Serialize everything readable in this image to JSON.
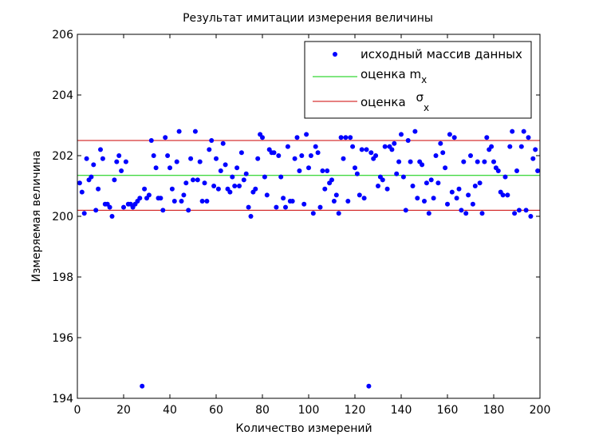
{
  "chart_data": {
    "type": "scatter",
    "title": "Результат имитации измерения величины",
    "xlabel": "Количество измерений",
    "ylabel": "Измеряемая величина",
    "xlim": [
      0,
      200
    ],
    "ylim": [
      194,
      206
    ],
    "xticks": [
      0,
      20,
      40,
      60,
      80,
      100,
      120,
      140,
      160,
      180,
      200
    ],
    "yticks": [
      194,
      196,
      198,
      200,
      202,
      204,
      206
    ],
    "grid": false,
    "legend_position": "top-right",
    "legend": {
      "data_label": "исходный массив данных",
      "mean_label": "оценка m",
      "mean_sub": "x",
      "sigma_label": "оценка ",
      "sigma_symbol": "σ",
      "sigma_sub": "x"
    },
    "colors": {
      "points": "#0000ff",
      "mean_line": "#00cc00",
      "sigma_lines": "#cc0000"
    },
    "mean": 201.35,
    "sigma_bounds": [
      200.2,
      202.5
    ],
    "points": [
      [
        1,
        201.1
      ],
      [
        2,
        200.8
      ],
      [
        3,
        200.1
      ],
      [
        4,
        201.9
      ],
      [
        5,
        201.2
      ],
      [
        6,
        201.3
      ],
      [
        7,
        201.7
      ],
      [
        8,
        200.2
      ],
      [
        9,
        200.9
      ],
      [
        10,
        202.2
      ],
      [
        11,
        201.9
      ],
      [
        12,
        200.4
      ],
      [
        13,
        200.4
      ],
      [
        14,
        200.3
      ],
      [
        15,
        200.0
      ],
      [
        16,
        201.2
      ],
      [
        17,
        201.8
      ],
      [
        18,
        202.0
      ],
      [
        19,
        201.5
      ],
      [
        20,
        200.3
      ],
      [
        21,
        201.8
      ],
      [
        22,
        200.4
      ],
      [
        23,
        200.4
      ],
      [
        24,
        200.3
      ],
      [
        25,
        200.4
      ],
      [
        26,
        200.5
      ],
      [
        27,
        200.6
      ],
      [
        28,
        194.4
      ],
      [
        29,
        200.9
      ],
      [
        30,
        200.6
      ],
      [
        31,
        200.7
      ],
      [
        32,
        202.5
      ],
      [
        33,
        202.0
      ],
      [
        34,
        201.6
      ],
      [
        35,
        200.6
      ],
      [
        36,
        200.6
      ],
      [
        37,
        200.2
      ],
      [
        38,
        202.6
      ],
      [
        39,
        202.0
      ],
      [
        40,
        201.6
      ],
      [
        41,
        200.9
      ],
      [
        42,
        200.5
      ],
      [
        43,
        201.8
      ],
      [
        44,
        202.8
      ],
      [
        45,
        200.5
      ],
      [
        46,
        200.7
      ],
      [
        47,
        201.1
      ],
      [
        48,
        200.2
      ],
      [
        49,
        201.9
      ],
      [
        50,
        201.2
      ],
      [
        51,
        202.8
      ],
      [
        52,
        201.2
      ],
      [
        53,
        201.8
      ],
      [
        54,
        200.5
      ],
      [
        55,
        201.1
      ],
      [
        56,
        200.5
      ],
      [
        57,
        202.2
      ],
      [
        58,
        202.5
      ],
      [
        59,
        201.0
      ],
      [
        60,
        201.9
      ],
      [
        61,
        200.9
      ],
      [
        62,
        201.5
      ],
      [
        63,
        202.4
      ],
      [
        64,
        201.7
      ],
      [
        65,
        200.9
      ],
      [
        66,
        200.8
      ],
      [
        67,
        201.3
      ],
      [
        68,
        201.0
      ],
      [
        69,
        201.6
      ],
      [
        70,
        201.0
      ],
      [
        71,
        202.1
      ],
      [
        72,
        201.2
      ],
      [
        73,
        201.4
      ],
      [
        74,
        200.3
      ],
      [
        75,
        200.0
      ],
      [
        76,
        200.8
      ],
      [
        77,
        200.9
      ],
      [
        78,
        201.9
      ],
      [
        79,
        202.7
      ],
      [
        80,
        202.6
      ],
      [
        81,
        201.3
      ],
      [
        82,
        200.7
      ],
      [
        83,
        202.2
      ],
      [
        84,
        202.1
      ],
      [
        85,
        202.1
      ],
      [
        86,
        200.3
      ],
      [
        87,
        202.0
      ],
      [
        88,
        201.3
      ],
      [
        89,
        200.6
      ],
      [
        90,
        200.3
      ],
      [
        91,
        202.3
      ],
      [
        92,
        200.5
      ],
      [
        93,
        200.5
      ],
      [
        94,
        201.9
      ],
      [
        95,
        202.6
      ],
      [
        96,
        201.5
      ],
      [
        97,
        202.0
      ],
      [
        98,
        200.4
      ],
      [
        99,
        202.7
      ],
      [
        100,
        201.6
      ],
      [
        101,
        202.0
      ],
      [
        102,
        200.1
      ],
      [
        103,
        202.3
      ],
      [
        104,
        202.1
      ],
      [
        105,
        200.3
      ],
      [
        106,
        201.5
      ],
      [
        107,
        200.9
      ],
      [
        108,
        201.5
      ],
      [
        109,
        201.1
      ],
      [
        110,
        201.2
      ],
      [
        111,
        200.5
      ],
      [
        112,
        200.7
      ],
      [
        113,
        200.1
      ],
      [
        114,
        202.6
      ],
      [
        115,
        201.9
      ],
      [
        116,
        202.6
      ],
      [
        117,
        200.5
      ],
      [
        118,
        202.6
      ],
      [
        119,
        202.3
      ],
      [
        120,
        201.6
      ],
      [
        121,
        201.4
      ],
      [
        122,
        200.7
      ],
      [
        123,
        202.2
      ],
      [
        124,
        200.6
      ],
      [
        125,
        202.2
      ],
      [
        126,
        194.4
      ],
      [
        127,
        202.1
      ],
      [
        128,
        201.9
      ],
      [
        129,
        202.0
      ],
      [
        130,
        201.0
      ],
      [
        131,
        201.3
      ],
      [
        132,
        201.2
      ],
      [
        133,
        202.3
      ],
      [
        134,
        200.9
      ],
      [
        135,
        202.3
      ],
      [
        136,
        202.2
      ],
      [
        137,
        202.4
      ],
      [
        138,
        201.4
      ],
      [
        139,
        201.8
      ],
      [
        140,
        202.7
      ],
      [
        141,
        201.3
      ],
      [
        142,
        200.2
      ],
      [
        143,
        202.5
      ],
      [
        144,
        201.8
      ],
      [
        145,
        201.0
      ],
      [
        146,
        202.8
      ],
      [
        147,
        200.6
      ],
      [
        148,
        201.8
      ],
      [
        149,
        201.7
      ],
      [
        150,
        200.5
      ],
      [
        151,
        201.1
      ],
      [
        152,
        200.1
      ],
      [
        153,
        201.2
      ],
      [
        154,
        200.6
      ],
      [
        155,
        202.0
      ],
      [
        156,
        201.1
      ],
      [
        157,
        202.4
      ],
      [
        158,
        202.1
      ],
      [
        159,
        201.6
      ],
      [
        160,
        200.4
      ],
      [
        161,
        202.7
      ],
      [
        162,
        200.8
      ],
      [
        163,
        202.6
      ],
      [
        164,
        200.6
      ],
      [
        165,
        200.9
      ],
      [
        166,
        200.2
      ],
      [
        167,
        201.8
      ],
      [
        168,
        200.1
      ],
      [
        169,
        200.7
      ],
      [
        170,
        202.0
      ],
      [
        171,
        200.4
      ],
      [
        172,
        201.0
      ],
      [
        173,
        201.8
      ],
      [
        174,
        201.1
      ],
      [
        175,
        200.1
      ],
      [
        176,
        201.8
      ],
      [
        177,
        202.6
      ],
      [
        178,
        202.2
      ],
      [
        179,
        202.3
      ],
      [
        180,
        201.8
      ],
      [
        181,
        201.6
      ],
      [
        182,
        201.5
      ],
      [
        183,
        200.8
      ],
      [
        184,
        200.7
      ],
      [
        185,
        201.3
      ],
      [
        186,
        200.7
      ],
      [
        187,
        202.3
      ],
      [
        188,
        202.8
      ],
      [
        189,
        200.1
      ],
      [
        190,
        201.5
      ],
      [
        191,
        200.2
      ],
      [
        192,
        202.3
      ],
      [
        193,
        202.8
      ],
      [
        194,
        200.2
      ],
      [
        195,
        202.6
      ],
      [
        196,
        200.0
      ],
      [
        197,
        201.9
      ],
      [
        198,
        202.2
      ],
      [
        199,
        201.5
      ]
    ]
  }
}
